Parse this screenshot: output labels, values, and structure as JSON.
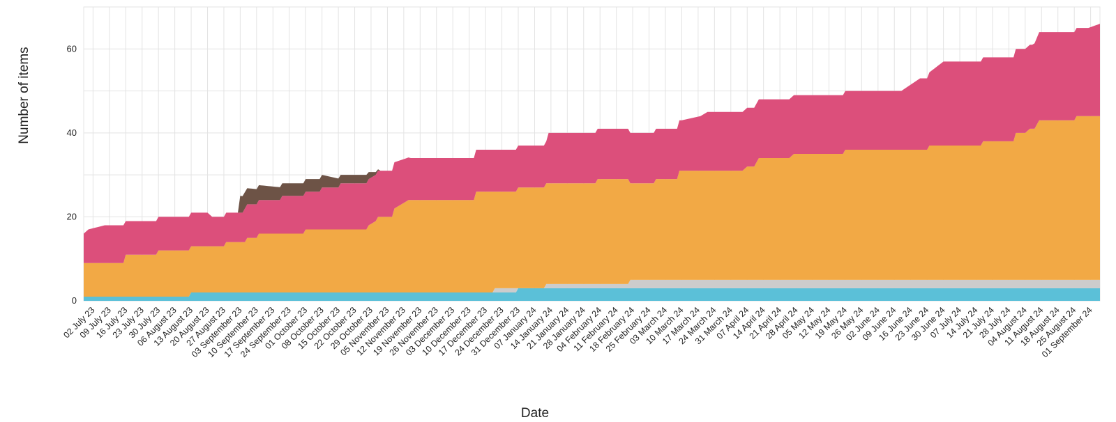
{
  "chart_data": {
    "type": "area",
    "stacked": true,
    "xlabel": "Date",
    "ylabel": "Number of items",
    "ylim": [
      0,
      70
    ],
    "y_ticks": [
      0,
      20,
      40,
      60
    ],
    "grid": true,
    "legend": "none",
    "x": [
      "2023-06-28",
      "2024-09-05"
    ],
    "x_ticks": [
      "02 July 23",
      "09 July 23",
      "16 July 23",
      "23 July 23",
      "30 July 23",
      "06 August 23",
      "13 August 23",
      "20 August 23",
      "27 August 23",
      "03 September 23",
      "10 September 23",
      "17 September 23",
      "24 September 23",
      "01 October 23",
      "08 October 23",
      "15 October 23",
      "22 October 23",
      "29 October 23",
      "05 November 23",
      "12 November 23",
      "19 November 23",
      "26 November 23",
      "03 December 23",
      "10 December 23",
      "17 December 23",
      "24 December 23",
      "31 December 23",
      "07 January 24",
      "14 January 24",
      "21 January 24",
      "28 January 24",
      "04 February 24",
      "11 February 24",
      "18 February 24",
      "25 February 24",
      "03 March 24",
      "10 March 24",
      "17 March 24",
      "24 March 24",
      "31 March 24",
      "07 April 24",
      "14 April 24",
      "21 April 24",
      "28 April 24",
      "05 May 24",
      "12 May 24",
      "19 May 24",
      "26 May 24",
      "02 June 24",
      "09 June 24",
      "16 June 24",
      "23 June 24",
      "30 June 24",
      "07 July 24",
      "14 July 24",
      "21 July 24",
      "28 July 24",
      "04 August 24",
      "11 August 24",
      "18 August 24",
      "25 August 24",
      "01 September 24"
    ],
    "series": [
      {
        "color": "#5bc0d8",
        "points": [
          [
            "2023-06-28",
            1
          ],
          [
            "2023-08-12",
            1
          ],
          [
            "2023-08-13",
            2
          ],
          [
            "2023-12-30",
            2
          ],
          [
            "2023-12-31",
            3
          ],
          [
            "2024-09-05",
            3
          ]
        ]
      },
      {
        "color": "#cccccc",
        "points": [
          [
            "2023-06-28",
            0
          ],
          [
            "2023-12-20",
            0
          ],
          [
            "2023-12-21",
            1
          ],
          [
            "2023-12-30",
            1
          ],
          [
            "2023-12-31",
            0
          ],
          [
            "2024-01-11",
            0
          ],
          [
            "2024-01-12",
            1
          ],
          [
            "2024-02-16",
            1
          ],
          [
            "2024-02-17",
            2
          ],
          [
            "2024-09-05",
            2
          ]
        ]
      },
      {
        "color": "#f2a945",
        "points": [
          [
            "2023-06-28",
            8
          ],
          [
            "2023-07-15",
            8
          ],
          [
            "2023-07-16",
            10
          ],
          [
            "2023-07-29",
            10
          ],
          [
            "2023-07-30",
            11
          ],
          [
            "2023-08-12",
            11
          ],
          [
            "2023-08-13",
            11
          ],
          [
            "2023-08-27",
            11
          ],
          [
            "2023-08-28",
            12
          ],
          [
            "2023-09-05",
            12
          ],
          [
            "2023-09-06",
            13
          ],
          [
            "2023-09-10",
            13
          ],
          [
            "2023-09-11",
            14
          ],
          [
            "2023-09-30",
            14
          ],
          [
            "2023-10-01",
            15
          ],
          [
            "2023-10-27",
            15
          ],
          [
            "2023-10-28",
            16
          ],
          [
            "2023-10-31",
            17
          ],
          [
            "2023-11-01",
            18
          ],
          [
            "2023-11-07",
            18
          ],
          [
            "2023-11-08",
            20
          ],
          [
            "2023-11-11",
            21
          ],
          [
            "2023-11-14",
            22
          ],
          [
            "2023-12-12",
            22
          ],
          [
            "2023-12-13",
            24
          ],
          [
            "2023-12-20",
            24
          ],
          [
            "2023-12-21",
            23
          ],
          [
            "2023-12-30",
            23
          ],
          [
            "2023-12-31",
            24
          ],
          [
            "2024-02-02",
            24
          ],
          [
            "2024-02-03",
            25
          ],
          [
            "2024-02-16",
            25
          ],
          [
            "2024-02-17",
            23
          ],
          [
            "2024-02-27",
            23
          ],
          [
            "2024-02-28",
            24
          ],
          [
            "2024-03-08",
            24
          ],
          [
            "2024-03-09",
            26
          ],
          [
            "2024-04-05",
            26
          ],
          [
            "2024-04-07",
            27
          ],
          [
            "2024-04-10",
            27
          ],
          [
            "2024-04-12",
            29
          ],
          [
            "2024-04-25",
            29
          ],
          [
            "2024-04-27",
            30
          ],
          [
            "2024-05-18",
            30
          ],
          [
            "2024-05-19",
            31
          ],
          [
            "2024-06-23",
            31
          ],
          [
            "2024-06-24",
            32
          ],
          [
            "2024-07-16",
            32
          ],
          [
            "2024-07-17",
            33
          ],
          [
            "2024-07-30",
            33
          ],
          [
            "2024-07-31",
            35
          ],
          [
            "2024-08-04",
            35
          ],
          [
            "2024-08-06",
            36
          ],
          [
            "2024-08-08",
            36
          ],
          [
            "2024-08-10",
            38
          ],
          [
            "2024-08-25",
            38
          ],
          [
            "2024-08-26",
            39
          ],
          [
            "2024-09-05",
            39
          ]
        ]
      },
      {
        "color": "#dc4f7b",
        "points": [
          [
            "2023-06-28",
            7
          ],
          [
            "2023-06-30",
            8
          ],
          [
            "2023-07-07",
            9
          ],
          [
            "2023-07-15",
            9
          ],
          [
            "2023-07-16",
            8
          ],
          [
            "2023-08-20",
            8
          ],
          [
            "2023-08-22",
            7
          ],
          [
            "2023-09-04",
            7
          ],
          [
            "2023-09-05",
            8
          ],
          [
            "2023-09-11",
            8
          ],
          [
            "2023-09-20",
            8
          ],
          [
            "2023-09-21",
            9
          ],
          [
            "2023-10-01",
            9
          ],
          [
            "2023-10-07",
            9
          ],
          [
            "2023-10-08",
            10
          ],
          [
            "2023-10-15",
            10
          ],
          [
            "2023-10-16",
            11
          ],
          [
            "2023-10-27",
            11
          ],
          [
            "2023-10-31",
            11
          ],
          [
            "2023-11-08",
            11
          ],
          [
            "2023-11-15",
            10
          ],
          [
            "2023-12-01",
            10
          ],
          [
            "2023-12-13",
            10
          ],
          [
            "2023-12-20",
            10
          ],
          [
            "2023-12-31",
            10
          ],
          [
            "2024-01-12",
            10
          ],
          [
            "2024-01-13",
            12
          ],
          [
            "2024-02-16",
            12
          ],
          [
            "2024-03-01",
            12
          ],
          [
            "2024-03-10",
            12
          ],
          [
            "2024-03-18",
            13
          ],
          [
            "2024-03-21",
            14
          ],
          [
            "2024-04-07",
            14
          ],
          [
            "2024-04-15",
            14
          ],
          [
            "2024-05-01",
            14
          ],
          [
            "2024-05-18",
            14
          ],
          [
            "2024-06-12",
            14
          ],
          [
            "2024-06-20",
            17
          ],
          [
            "2024-06-23",
            17
          ],
          [
            "2024-06-30",
            20
          ],
          [
            "2024-07-16",
            20
          ],
          [
            "2024-08-07",
            20
          ],
          [
            "2024-08-10",
            21
          ],
          [
            "2024-08-31",
            21
          ],
          [
            "2024-09-05",
            22
          ]
        ]
      },
      {
        "color": "#6d5346",
        "points": [
          [
            "2023-06-28",
            0
          ],
          [
            "2023-09-02",
            0
          ],
          [
            "2023-09-03",
            4
          ],
          [
            "2023-09-21",
            3
          ],
          [
            "2023-10-01",
            3
          ],
          [
            "2023-10-08",
            3
          ],
          [
            "2023-10-16",
            2
          ],
          [
            "2023-10-27",
            2
          ],
          [
            "2023-11-02",
            0
          ],
          [
            "2024-09-05",
            0
          ]
        ]
      }
    ]
  }
}
